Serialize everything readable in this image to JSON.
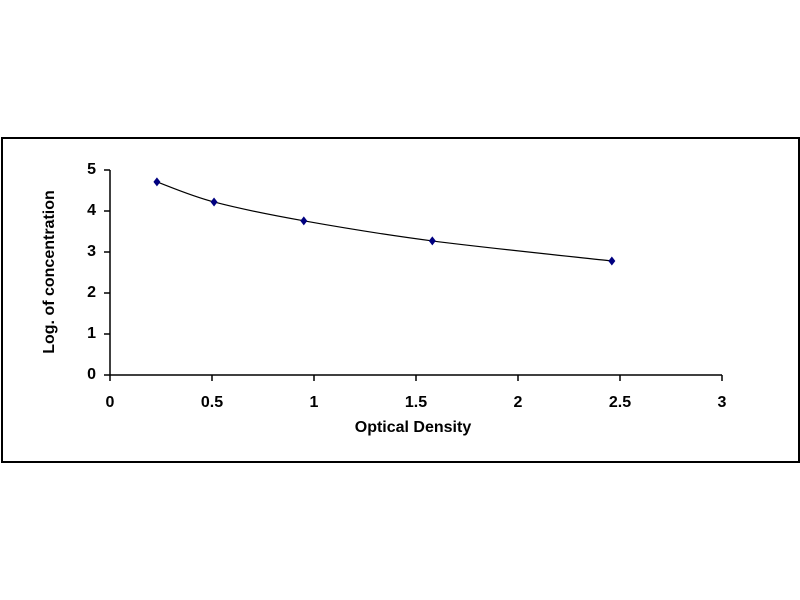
{
  "chart_data": {
    "type": "scatter",
    "smooth": true,
    "x_label": "Optical Density",
    "y_label": "Log. of concentration",
    "series": [
      {
        "color": "#000080",
        "line_color": "#000000",
        "x": [
          0.23,
          0.51,
          0.95,
          1.58,
          2.46
        ],
        "values": [
          4.71,
          4.22,
          3.76,
          3.27,
          2.78
        ]
      }
    ],
    "xlim": [
      0,
      3
    ],
    "xticks": [
      0,
      0.5,
      1,
      1.5,
      2,
      2.5,
      3
    ],
    "ylim": [
      0,
      5
    ],
    "yticks": [
      0,
      1,
      2,
      3,
      4,
      5
    ]
  }
}
